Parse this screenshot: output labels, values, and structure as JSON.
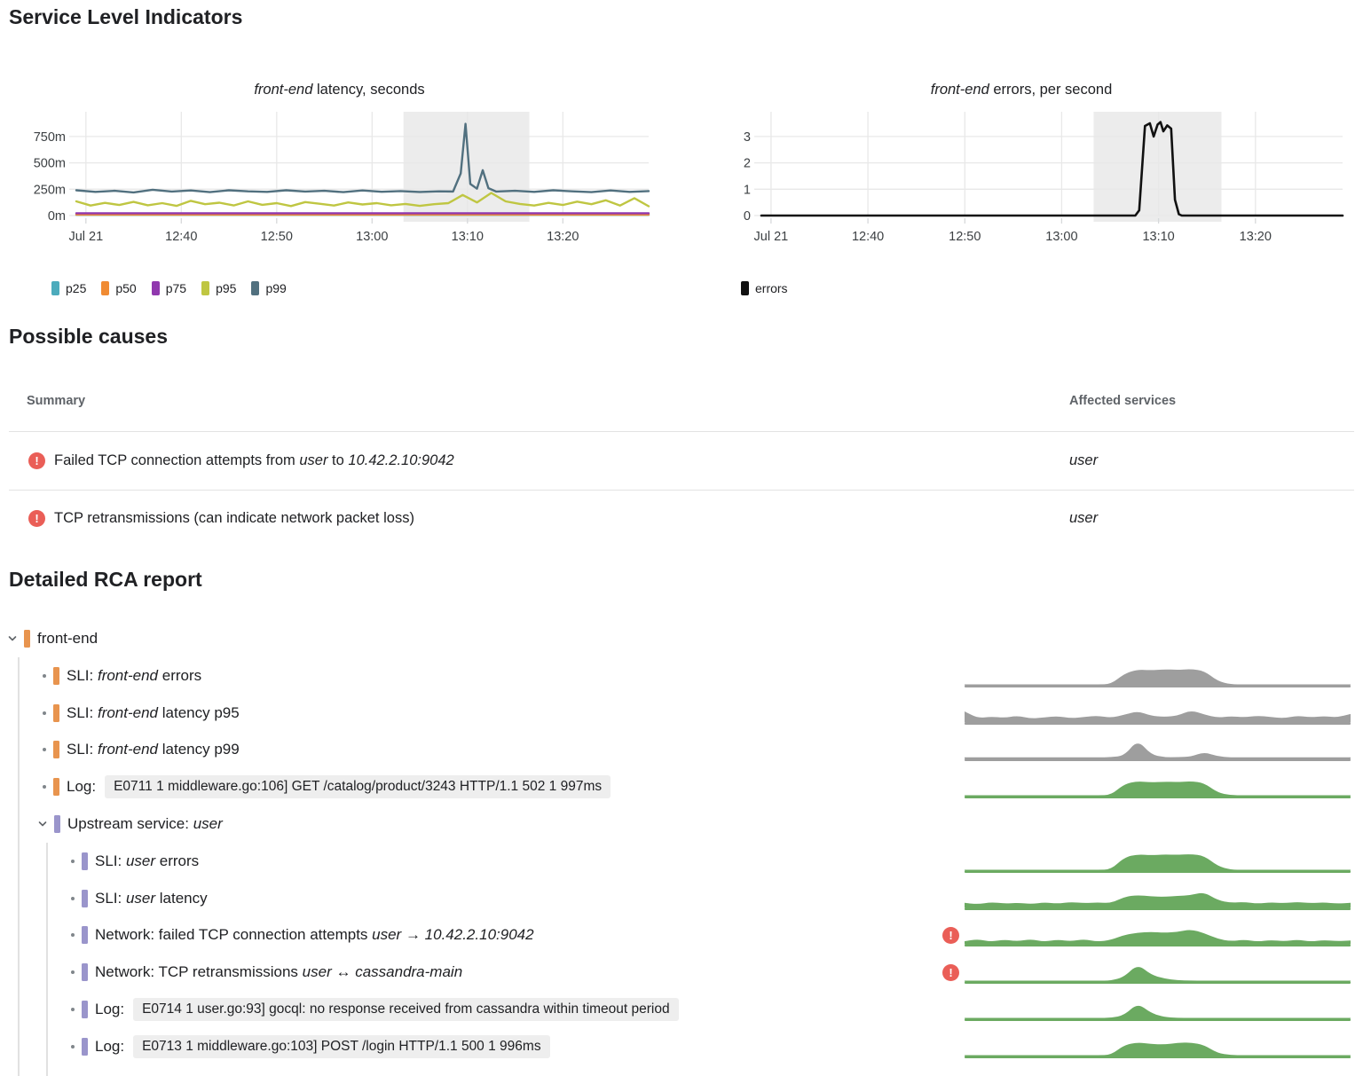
{
  "sections": {
    "sli": "Service Level Indicators",
    "causes": "Possible causes",
    "rca": "Detailed RCA report"
  },
  "colors": {
    "alert_red": "#EA5E57",
    "spark_green": "#6BAA61",
    "spark_gray": "#9E9E9E",
    "bar_orange": "#E8944E",
    "bar_purple": "#9A95CB",
    "highlight": "#ECECEC",
    "grid": "#E8E8E8",
    "tick": "#D7D9DB",
    "axis_text": "#3C4043"
  },
  "chart_data": [
    {
      "id": "latency",
      "type": "line",
      "title": "front-end latency, seconds",
      "title_rich": [
        {
          "t": "front-end",
          "i": true
        },
        {
          "t": " latency, seconds"
        }
      ],
      "x_axis": {
        "start_time": "12:29",
        "end_time": "13:29",
        "span_min": 60,
        "ticks": [
          {
            "min": 1,
            "label": "Jul 21"
          },
          {
            "min": 11,
            "label": "12:40"
          },
          {
            "min": 21,
            "label": "12:50"
          },
          {
            "min": 31,
            "label": "13:00"
          },
          {
            "min": 41,
            "label": "13:10"
          },
          {
            "min": 51,
            "label": "13:20"
          }
        ]
      },
      "y_axis": {
        "units_per_row": 250,
        "ticks": [
          {
            "v": 0,
            "label": "0m"
          },
          {
            "v": 250,
            "label": "250m"
          },
          {
            "v": 500,
            "label": "500m"
          },
          {
            "v": 750,
            "label": "750m"
          }
        ]
      },
      "highlight_window": {
        "from_min": 34.3,
        "to_min": 47.5
      },
      "grid": true,
      "legend_position": "bottom-left",
      "series": [
        {
          "name": "p25",
          "color": "#4CABBC",
          "x": [
            0,
            60
          ],
          "y": [
            7,
            7
          ]
        },
        {
          "name": "p50",
          "color": "#F08B33",
          "x": [
            0,
            60
          ],
          "y": [
            9,
            9
          ]
        },
        {
          "name": "p75",
          "color": "#9038AE",
          "x": [
            0,
            60
          ],
          "y": [
            22,
            22
          ]
        },
        {
          "name": "p95",
          "color": "#BFC642",
          "x_step": 1.5,
          "y": [
            135,
            95,
            120,
            100,
            130,
            98,
            118,
            92,
            140,
            108,
            122,
            96,
            135,
            102,
            118,
            90,
            128,
            112,
            95,
            125,
            105,
            118,
            98,
            110,
            92,
            108,
            118,
            195,
            125,
            215,
            135,
            110,
            95,
            120,
            100,
            132,
            108,
            145,
            95,
            165,
            88
          ]
        },
        {
          "name": "p99",
          "color": "#51707F",
          "x": [
            0,
            2,
            4,
            6,
            8,
            10,
            12,
            14,
            16,
            18,
            20,
            22,
            24,
            26,
            28,
            30,
            32,
            34,
            36,
            38,
            39.5,
            40.3,
            40.8,
            41.3,
            42,
            42.6,
            43.2,
            44,
            46,
            48,
            50,
            52,
            54,
            56,
            58,
            60
          ],
          "y": [
            240,
            225,
            235,
            220,
            245,
            228,
            238,
            222,
            240,
            230,
            225,
            240,
            228,
            235,
            222,
            238,
            226,
            232,
            224,
            230,
            228,
            400,
            870,
            300,
            255,
            430,
            260,
            228,
            235,
            225,
            240,
            230,
            222,
            238,
            225,
            232
          ]
        }
      ]
    },
    {
      "id": "errors",
      "type": "line",
      "title": "front-end errors, per second",
      "title_rich": [
        {
          "t": "front-end",
          "i": true
        },
        {
          "t": " errors, per second"
        }
      ],
      "x_axis": {
        "start_time": "12:29",
        "end_time": "13:29",
        "span_min": 60,
        "ticks": [
          {
            "min": 1,
            "label": "Jul 21"
          },
          {
            "min": 11,
            "label": "12:40"
          },
          {
            "min": 21,
            "label": "12:50"
          },
          {
            "min": 31,
            "label": "13:00"
          },
          {
            "min": 41,
            "label": "13:10"
          },
          {
            "min": 51,
            "label": "13:20"
          }
        ]
      },
      "y_axis": {
        "units_per_row": 1,
        "ticks": [
          {
            "v": 0,
            "label": "0"
          },
          {
            "v": 1,
            "label": "1"
          },
          {
            "v": 2,
            "label": "2"
          },
          {
            "v": 3,
            "label": "3"
          }
        ]
      },
      "highlight_window": {
        "from_min": 34.3,
        "to_min": 47.5
      },
      "grid": true,
      "legend_position": "bottom-left",
      "series": [
        {
          "name": "errors",
          "color": "#111111",
          "width": 2.6,
          "x": [
            0,
            38.6,
            39.0,
            39.6,
            40.1,
            40.5,
            40.9,
            41.2,
            41.5,
            41.9,
            42.3,
            42.7,
            43.1,
            43.4,
            60
          ],
          "y": [
            0,
            0,
            0.2,
            3.4,
            3.5,
            3.0,
            3.45,
            3.55,
            3.2,
            3.42,
            3.3,
            0.6,
            0.05,
            0,
            0
          ]
        }
      ]
    }
  ],
  "causes": {
    "headers": [
      "Summary",
      "Affected services"
    ],
    "rows": [
      {
        "summary": [
          {
            "t": "Failed TCP connection attempts from "
          },
          {
            "t": "user",
            "i": true
          },
          {
            "t": " to "
          },
          {
            "t": "10.42.2.10:9042",
            "i": true
          }
        ],
        "affected": [
          {
            "t": "user",
            "i": true
          }
        ]
      },
      {
        "summary": [
          {
            "t": "TCP retransmissions (can indicate network packet loss)"
          }
        ],
        "affected": [
          {
            "t": "user",
            "i": true
          }
        ]
      }
    ]
  },
  "rca": {
    "rows": [
      {
        "id": "front-end",
        "indent": 0,
        "expandable": true,
        "bar": "#E8944E",
        "label": [
          {
            "t": "front-end"
          }
        ]
      },
      {
        "id": "sli-front-end-errors",
        "indent": 1,
        "bar": "#E8944E",
        "label": [
          {
            "t": "SLI: "
          },
          {
            "t": "front-end",
            "i": true
          },
          {
            "t": " errors"
          }
        ],
        "spark": {
          "color": "#9E9E9E",
          "values": [
            0.02,
            0.02,
            0.02,
            0.02,
            0.02,
            0.02,
            0.02,
            0.02,
            0.02,
            0.02,
            0.02,
            0.03,
            0.52,
            0.72,
            0.68,
            0.73,
            0.7,
            0.74,
            0.66,
            0.18,
            0.02,
            0.02,
            0.02,
            0.02,
            0.02,
            0.02,
            0.02,
            0.02,
            0.02,
            0.02
          ]
        }
      },
      {
        "id": "sli-front-end-latency-p95",
        "indent": 1,
        "bar": "#E8944E",
        "label": [
          {
            "t": "SLI: "
          },
          {
            "t": "front-end",
            "i": true
          },
          {
            "t": " latency p95"
          }
        ],
        "spark": {
          "color": "#9E9E9E",
          "values": [
            0.5,
            0.18,
            0.26,
            0.2,
            0.3,
            0.16,
            0.22,
            0.28,
            0.18,
            0.24,
            0.3,
            0.2,
            0.34,
            0.52,
            0.3,
            0.24,
            0.3,
            0.56,
            0.36,
            0.2,
            0.28,
            0.22,
            0.3,
            0.24,
            0.18,
            0.3,
            0.22,
            0.28,
            0.22,
            0.38
          ]
        }
      },
      {
        "id": "sli-front-end-latency-p99",
        "indent": 1,
        "bar": "#E8944E",
        "label": [
          {
            "t": "SLI: "
          },
          {
            "t": "front-end",
            "i": true
          },
          {
            "t": " latency p99"
          }
        ],
        "spark": {
          "color": "#9E9E9E",
          "values": [
            0.05,
            0.05,
            0.05,
            0.05,
            0.05,
            0.05,
            0.05,
            0.05,
            0.05,
            0.05,
            0.05,
            0.06,
            0.12,
            0.88,
            0.18,
            0.06,
            0.06,
            0.08,
            0.3,
            0.1,
            0.05,
            0.05,
            0.05,
            0.05,
            0.05,
            0.05,
            0.05,
            0.05,
            0.05,
            0.05
          ]
        }
      },
      {
        "id": "log-e0711",
        "indent": 1,
        "bar": "#E8944E",
        "label": [
          {
            "t": "Log:"
          }
        ],
        "code": "E0711 1 middleware.go:106] GET /catalog/product/3243 HTTP/1.1 502 1 997ms",
        "spark": {
          "color": "#6BAA61",
          "values": [
            0.02,
            0.02,
            0.02,
            0.02,
            0.02,
            0.02,
            0.02,
            0.02,
            0.02,
            0.02,
            0.02,
            0.03,
            0.55,
            0.68,
            0.62,
            0.66,
            0.64,
            0.68,
            0.6,
            0.15,
            0.02,
            0.02,
            0.02,
            0.02,
            0.02,
            0.02,
            0.02,
            0.02,
            0.02,
            0.02
          ]
        }
      },
      {
        "id": "upstream-user",
        "indent": 1,
        "expandable": true,
        "bar": "#9A95CB",
        "label": [
          {
            "t": "Upstream service: "
          },
          {
            "t": "user",
            "i": true
          }
        ]
      },
      {
        "id": "sli-user-errors",
        "indent": 2,
        "bar": "#9A95CB",
        "label": [
          {
            "t": "SLI: "
          },
          {
            "t": "user",
            "i": true
          },
          {
            "t": " errors"
          }
        ],
        "spark": {
          "color": "#6BAA61",
          "values": [
            0.02,
            0.02,
            0.02,
            0.02,
            0.02,
            0.02,
            0.02,
            0.02,
            0.02,
            0.02,
            0.02,
            0.03,
            0.6,
            0.75,
            0.7,
            0.74,
            0.72,
            0.76,
            0.68,
            0.2,
            0.02,
            0.02,
            0.02,
            0.02,
            0.02,
            0.02,
            0.02,
            0.02,
            0.02,
            0.02
          ]
        }
      },
      {
        "id": "sli-user-latency",
        "indent": 2,
        "bar": "#9A95CB",
        "label": [
          {
            "t": "SLI: "
          },
          {
            "t": "user",
            "i": true
          },
          {
            "t": " latency"
          }
        ],
        "spark": {
          "color": "#6BAA61",
          "values": [
            0.22,
            0.15,
            0.25,
            0.18,
            0.22,
            0.16,
            0.24,
            0.18,
            0.26,
            0.2,
            0.24,
            0.2,
            0.5,
            0.58,
            0.52,
            0.5,
            0.54,
            0.58,
            0.72,
            0.35,
            0.22,
            0.26,
            0.18,
            0.24,
            0.2,
            0.26,
            0.2,
            0.24,
            0.18,
            0.22
          ]
        }
      },
      {
        "id": "net-failed-tcp",
        "indent": 2,
        "bar": "#9A95CB",
        "alert": true,
        "label": [
          {
            "t": "Network: failed TCP connection attempts "
          },
          {
            "t": "user",
            "i": true
          },
          {
            "t": " → "
          },
          {
            "t": "10.42.2.10:9042",
            "i": true
          }
        ],
        "spark": {
          "color": "#6BAA61",
          "values": [
            0.12,
            0.22,
            0.1,
            0.2,
            0.12,
            0.22,
            0.1,
            0.2,
            0.12,
            0.22,
            0.1,
            0.18,
            0.42,
            0.52,
            0.56,
            0.52,
            0.56,
            0.68,
            0.5,
            0.24,
            0.12,
            0.2,
            0.1,
            0.18,
            0.12,
            0.2,
            0.1,
            0.18,
            0.12,
            0.16
          ]
        }
      },
      {
        "id": "net-retransmissions",
        "indent": 2,
        "bar": "#9A95CB",
        "alert": true,
        "label": [
          {
            "t": "Network: TCP retransmissions "
          },
          {
            "t": "user",
            "i": true
          },
          {
            "t": " ↔ "
          },
          {
            "t": "cassandra-main",
            "i": true
          }
        ],
        "spark": {
          "color": "#6BAA61",
          "values": [
            0.02,
            0.02,
            0.02,
            0.02,
            0.02,
            0.02,
            0.02,
            0.02,
            0.02,
            0.02,
            0.02,
            0.02,
            0.2,
            0.8,
            0.3,
            0.12,
            0.04,
            0.02,
            0.02,
            0.02,
            0.02,
            0.02,
            0.02,
            0.02,
            0.02,
            0.02,
            0.02,
            0.02,
            0.02,
            0.02
          ]
        }
      },
      {
        "id": "log-e0714",
        "indent": 2,
        "bar": "#9A95CB",
        "label": [
          {
            "t": "Log:"
          }
        ],
        "code": "E0714 1 user.go:93] gocql: no response received from cassandra within timeout period",
        "spark": {
          "color": "#6BAA61",
          "values": [
            0.02,
            0.02,
            0.02,
            0.02,
            0.02,
            0.02,
            0.02,
            0.02,
            0.02,
            0.02,
            0.02,
            0.02,
            0.15,
            0.72,
            0.25,
            0.06,
            0.02,
            0.02,
            0.02,
            0.02,
            0.02,
            0.02,
            0.02,
            0.02,
            0.02,
            0.02,
            0.02,
            0.02,
            0.02,
            0.02
          ]
        }
      },
      {
        "id": "log-e0713",
        "indent": 2,
        "bar": "#9A95CB",
        "label": [
          {
            "t": "Log:"
          }
        ],
        "code": "E0713 1 middleware.go:103] POST /login HTTP/1.1 500 1 996ms",
        "spark": {
          "color": "#6BAA61",
          "values": [
            0.02,
            0.02,
            0.02,
            0.02,
            0.02,
            0.02,
            0.02,
            0.02,
            0.02,
            0.02,
            0.02,
            0.03,
            0.5,
            0.62,
            0.55,
            0.52,
            0.6,
            0.62,
            0.5,
            0.12,
            0.02,
            0.02,
            0.02,
            0.02,
            0.02,
            0.02,
            0.02,
            0.02,
            0.02,
            0.02
          ]
        }
      }
    ]
  }
}
